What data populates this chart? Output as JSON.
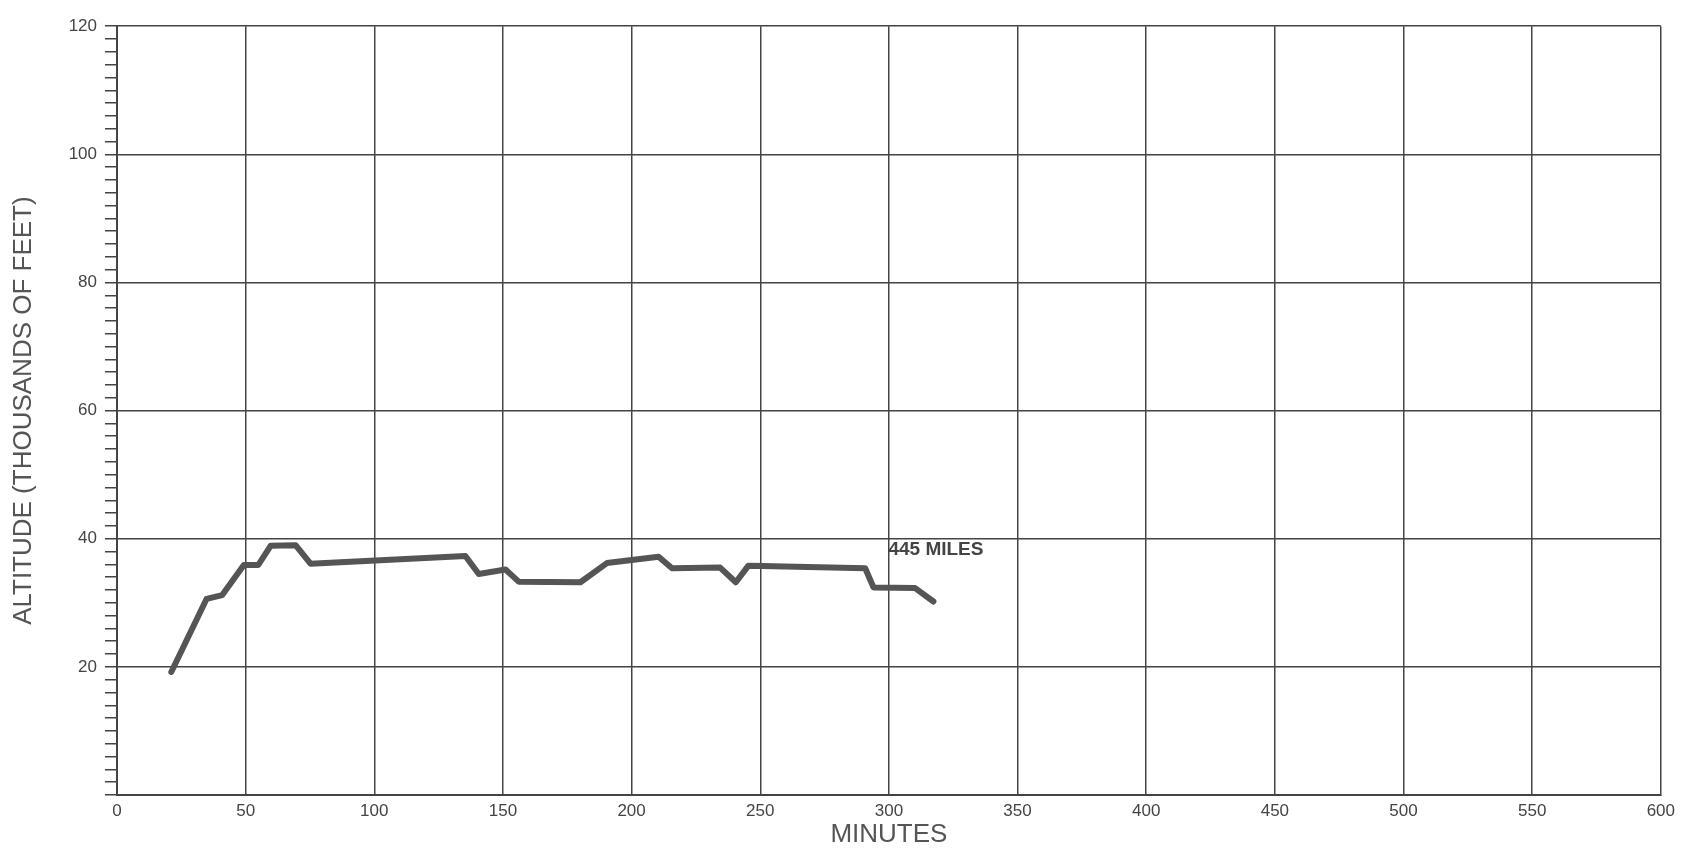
{
  "chart_data": {
    "type": "line",
    "xlabel": "MINUTES",
    "ylabel": "ALTITUDE (THOUSANDS OF FEET)",
    "x": [
      21.1,
      34.8,
      40.9,
      49.3,
      54.9,
      59.7,
      69.4,
      75.2,
      135.4,
      140.6,
      151,
      156.1,
      180.1,
      190.4,
      210.5,
      215.7,
      234.4,
      240.5,
      245.4,
      290.8,
      294,
      310.2,
      317.3
    ],
    "series": [
      {
        "color": "#555555",
        "values": [
          19.2,
          30.6,
          31.2,
          35.9,
          35.9,
          38.9,
          39.0,
          36.1,
          37.3,
          34.5,
          35.2,
          33.3,
          33.2,
          36.2,
          37.2,
          35.4,
          35.5,
          33.2,
          35.8,
          35.4,
          32.4,
          32.3,
          30.2
        ]
      }
    ],
    "xlim": [
      0,
      600
    ],
    "xticks": [
      0,
      50,
      100,
      150,
      200,
      250,
      300,
      350,
      400,
      450,
      500,
      550,
      600
    ],
    "ylim": [
      0,
      120
    ],
    "yticks": [
      {
        "value": 0,
        "label": null
      },
      {
        "value": 2,
        "label": null
      },
      {
        "value": 4,
        "label": null
      },
      {
        "value": 6,
        "label": null
      },
      {
        "value": 8,
        "label": null
      },
      {
        "value": 10,
        "label": null
      },
      {
        "value": 12,
        "label": null
      },
      {
        "value": 14,
        "label": null
      },
      {
        "value": 16,
        "label": null
      },
      {
        "value": 18,
        "label": null
      },
      20,
      {
        "value": 22,
        "label": null
      },
      {
        "value": 24,
        "label": null
      },
      {
        "value": 26,
        "label": null
      },
      {
        "value": 28,
        "label": null
      },
      {
        "value": 30,
        "label": null
      },
      {
        "value": 32,
        "label": null
      },
      {
        "value": 34,
        "label": null
      },
      {
        "value": 36,
        "label": null
      },
      {
        "value": 38,
        "label": null
      },
      40,
      {
        "value": 42,
        "label": null
      },
      {
        "value": 44,
        "label": null
      },
      {
        "value": 46,
        "label": null
      },
      {
        "value": 48,
        "label": null
      },
      {
        "value": 50,
        "label": null
      },
      {
        "value": 52,
        "label": null
      },
      {
        "value": 54,
        "label": null
      },
      {
        "value": 56,
        "label": null
      },
      {
        "value": 58,
        "label": null
      },
      60,
      {
        "value": 62,
        "label": null
      },
      {
        "value": 64,
        "label": null
      },
      {
        "value": 66,
        "label": null
      },
      {
        "value": 68,
        "label": null
      },
      {
        "value": 70,
        "label": null
      },
      {
        "value": 72,
        "label": null
      },
      {
        "value": 74,
        "label": null
      },
      {
        "value": 76,
        "label": null
      },
      {
        "value": 78,
        "label": null
      },
      80,
      {
        "value": 82,
        "label": null
      },
      {
        "value": 84,
        "label": null
      },
      {
        "value": 86,
        "label": null
      },
      {
        "value": 88,
        "label": null
      },
      {
        "value": 90,
        "label": null
      },
      {
        "value": 92,
        "label": null
      },
      {
        "value": 94,
        "label": null
      },
      {
        "value": 96,
        "label": null
      },
      {
        "value": 98,
        "label": null
      },
      100,
      {
        "value": 102,
        "label": null
      },
      {
        "value": 104,
        "label": null
      },
      {
        "value": 106,
        "label": null
      },
      {
        "value": 108,
        "label": null
      },
      {
        "value": 110,
        "label": null
      },
      {
        "value": 112,
        "label": null
      },
      {
        "value": 114,
        "label": null
      },
      {
        "value": 116,
        "label": null
      },
      {
        "value": 118,
        "label": null
      },
      120
    ],
    "grid": true,
    "marker": "none",
    "line_style": "solid",
    "legend": false,
    "annotations": [
      {
        "text": "445 MILES",
        "x": 317.3,
        "y": 30.2
      }
    ]
  }
}
